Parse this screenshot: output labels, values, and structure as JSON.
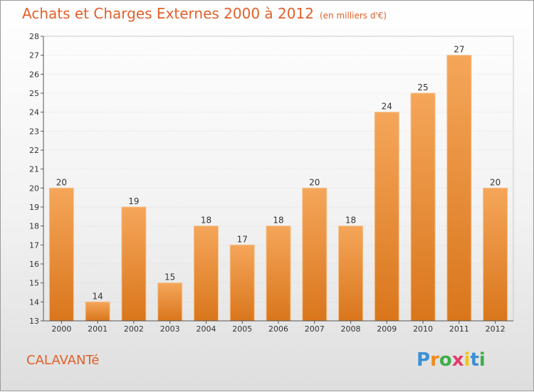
{
  "header": {
    "title": "Achats et Charges Externes 2000 à 2012",
    "unit": "(en milliers d'€)"
  },
  "footer": {
    "place": "CALAVANTé",
    "logo_letters": [
      "P",
      "r",
      "o",
      "x",
      "i",
      "t",
      "i"
    ],
    "logo_colors": [
      "#3b8fd6",
      "#f08a1c",
      "#3fae49",
      "#e23b6c",
      "#f0c419",
      "#3b8fd6",
      "#3fae49"
    ]
  },
  "chart_data": {
    "type": "bar",
    "title": "Achats et Charges Externes 2000 à 2012",
    "subtitle": "(en milliers d'€)",
    "xlabel": "",
    "ylabel": "",
    "categories": [
      "2000",
      "2001",
      "2002",
      "2003",
      "2004",
      "2005",
      "2006",
      "2007",
      "2008",
      "2009",
      "2010",
      "2011",
      "2012"
    ],
    "values": [
      20,
      14,
      19,
      15,
      18,
      17,
      18,
      20,
      18,
      24,
      25,
      27,
      20
    ],
    "ylim": [
      13,
      28
    ],
    "yticks": [
      13,
      14,
      15,
      16,
      17,
      18,
      19,
      20,
      21,
      22,
      23,
      24,
      25,
      26,
      27,
      28
    ],
    "grid": true,
    "bar_color_top": "#f5a65a",
    "bar_color_bottom": "#d9761c"
  }
}
